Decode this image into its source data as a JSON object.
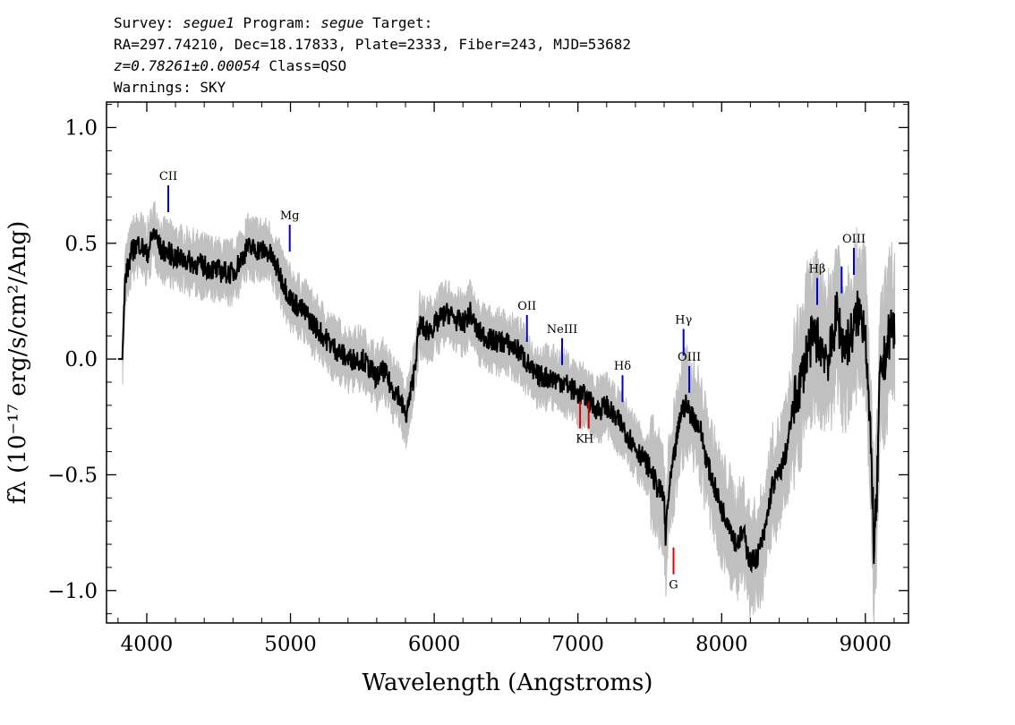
{
  "header": {
    "line1": {
      "survey_label": "Survey: ",
      "survey": "segue1",
      "program_label": " Program: ",
      "program": "segue",
      "target_label": " Target:"
    },
    "line2": "RA=297.74210, Dec=18.17833, Plate=2333, Fiber=243, MJD=53682",
    "line3": {
      "z": "z=0.78261±0.00054",
      "class": " Class=QSO"
    },
    "line4": "Warnings: SKY"
  },
  "chart_data": {
    "type": "line",
    "xlabel": "Wavelength (Angstroms)",
    "ylabel": "fλ (10⁻¹⁷ erg/s/cm²/Ang)",
    "xlim": [
      3720,
      9300
    ],
    "ylim": [
      -1.14,
      1.11
    ],
    "x_ticks": [
      4000,
      5000,
      6000,
      7000,
      8000,
      9000
    ],
    "x_tick_labels": [
      "4000",
      "5000",
      "6000",
      "7000",
      "8000",
      "9000"
    ],
    "y_ticks": [
      1.0,
      0.5,
      0.0,
      -0.5,
      -1.0
    ],
    "y_tick_labels": [
      "1.0",
      "0.5",
      "0.0",
      "−0.5",
      "−1.0"
    ],
    "colors": {
      "flux": "#000000",
      "error": "#c0c0c0",
      "emission": "#0000cc",
      "absorption": "#dd0000"
    },
    "series": [
      {
        "kind": "flux",
        "x": [
          3800,
          3830,
          3850,
          3900,
          3950,
          4000,
          4050,
          4100,
          4150,
          4200,
          4300,
          4400,
          4500,
          4600,
          4700,
          4800,
          4850,
          4900,
          4950,
          5000,
          5100,
          5200,
          5300,
          5400,
          5500,
          5600,
          5650,
          5700,
          5750,
          5800,
          5820,
          5850,
          5900,
          5950,
          6000,
          6050,
          6100,
          6150,
          6200,
          6250,
          6300,
          6400,
          6500,
          6600,
          6700,
          6800,
          6900,
          7000,
          7050,
          7100,
          7150,
          7200,
          7250,
          7300,
          7400,
          7500,
          7550,
          7600,
          7610,
          7620,
          7650,
          7700,
          7720,
          7750,
          7800,
          7850,
          7900,
          7950,
          8000,
          8050,
          8100,
          8150,
          8200,
          8250,
          8300,
          8350,
          8400,
          8450,
          8500,
          8550,
          8600,
          8650,
          8700,
          8750,
          8800,
          8850,
          8900,
          8950,
          9000,
          9030,
          9050,
          9060,
          9080,
          9100,
          9150,
          9180,
          9200
        ],
        "y": [
          0.0,
          0.0,
          0.35,
          0.47,
          0.5,
          0.45,
          0.55,
          0.47,
          0.46,
          0.44,
          0.42,
          0.4,
          0.38,
          0.37,
          0.48,
          0.47,
          0.46,
          0.4,
          0.33,
          0.26,
          0.2,
          0.12,
          0.05,
          0.0,
          0.0,
          -0.08,
          -0.05,
          -0.12,
          -0.15,
          -0.25,
          -0.2,
          -0.1,
          0.15,
          0.12,
          0.14,
          0.18,
          0.2,
          0.17,
          0.15,
          0.2,
          0.12,
          0.08,
          0.07,
          0.03,
          -0.07,
          -0.08,
          -0.1,
          -0.15,
          -0.16,
          -0.2,
          -0.22,
          -0.2,
          -0.25,
          -0.28,
          -0.38,
          -0.47,
          -0.55,
          -0.6,
          -0.8,
          -0.65,
          -0.5,
          -0.3,
          -0.22,
          -0.2,
          -0.25,
          -0.3,
          -0.45,
          -0.55,
          -0.65,
          -0.7,
          -0.8,
          -0.75,
          -0.88,
          -0.85,
          -0.75,
          -0.55,
          -0.5,
          -0.4,
          -0.2,
          -0.1,
          0.05,
          0.1,
          0.05,
          0.0,
          0.2,
          0.05,
          0.1,
          0.2,
          0.15,
          -0.3,
          -0.55,
          -0.85,
          -0.6,
          -0.1,
          0.05,
          0.15,
          0.12
        ]
      }
    ],
    "line_markers": [
      {
        "label": "CII",
        "x": 4150,
        "y": 0.75,
        "kind": "emission"
      },
      {
        "label": "Mg",
        "x": 4995,
        "y": 0.58,
        "kind": "emission"
      },
      {
        "label": "OII",
        "x": 6645,
        "y": 0.19,
        "kind": "emission"
      },
      {
        "label": "NeIII",
        "x": 6890,
        "y": 0.09,
        "kind": "emission"
      },
      {
        "label": "Hδ",
        "x": 7310,
        "y": -0.07,
        "kind": "emission"
      },
      {
        "label": "Hγ",
        "x": 7735,
        "y": 0.13,
        "kind": "emission"
      },
      {
        "label": "OIII",
        "x": 7775,
        "y": -0.03,
        "kind": "emission"
      },
      {
        "label": "Hβ",
        "x": 8665,
        "y": 0.35,
        "kind": "emission"
      },
      {
        "label": "",
        "x": 8835,
        "y": 0.4,
        "kind": "emission"
      },
      {
        "label": "OIII",
        "x": 8920,
        "y": 0.48,
        "kind": "emission"
      },
      {
        "label": "K",
        "x": 7015,
        "y": -0.3,
        "kind": "absorption"
      },
      {
        "label": "H",
        "x": 7075,
        "y": -0.3,
        "kind": "absorption"
      },
      {
        "label": "G",
        "x": 7665,
        "y": -0.93,
        "kind": "absorption"
      }
    ]
  }
}
